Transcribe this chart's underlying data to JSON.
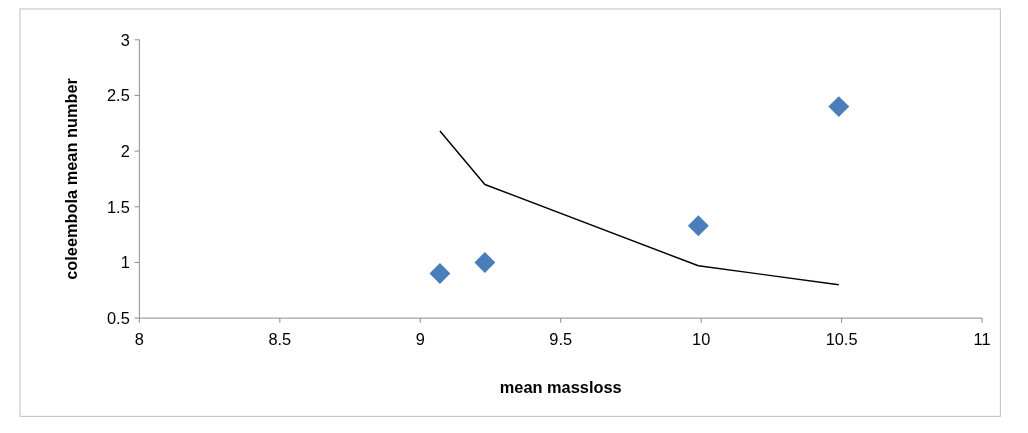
{
  "chart_data": {
    "type": "scatter",
    "xlabel": "mean massloss",
    "ylabel": "coleembola mean number",
    "xlim": [
      8,
      11
    ],
    "xticks": [
      8,
      8.5,
      9,
      9.5,
      10,
      10.5,
      11
    ],
    "ylim": [
      0.5,
      3
    ],
    "yticks": [
      0.5,
      1,
      1.5,
      2,
      2.5,
      3
    ],
    "grid": false,
    "series": [
      {
        "color": "#4a7ebb",
        "marker": "diamond",
        "x": [
          9.07,
          9.23,
          9.99,
          10.49
        ],
        "values": [
          0.9,
          1.0,
          1.33,
          2.4
        ]
      },
      {
        "type": "line",
        "color": "#000000",
        "marker": "none",
        "x": [
          9.07,
          9.23,
          9.99,
          10.49
        ],
        "values": [
          2.18,
          1.7,
          0.97,
          0.8
        ]
      }
    ]
  }
}
